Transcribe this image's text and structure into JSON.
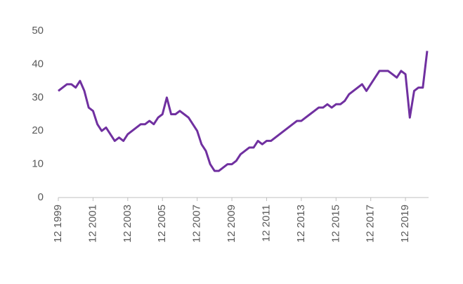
{
  "chart_data": {
    "type": "line",
    "categories": [
      "12 1999",
      null,
      null,
      null,
      null,
      null,
      null,
      null,
      "12 2001",
      null,
      null,
      null,
      null,
      null,
      null,
      null,
      "12 2003",
      null,
      null,
      null,
      null,
      null,
      null,
      null,
      "12 2005",
      null,
      null,
      null,
      null,
      null,
      null,
      null,
      "12 2007",
      null,
      null,
      null,
      null,
      null,
      null,
      null,
      "12 2009",
      null,
      null,
      null,
      null,
      null,
      null,
      null,
      "12 2011",
      null,
      null,
      null,
      null,
      null,
      null,
      null,
      "12 2013",
      null,
      null,
      null,
      null,
      null,
      null,
      null,
      "12 2015",
      null,
      null,
      null,
      null,
      null,
      null,
      null,
      "12 2017",
      null,
      null,
      null,
      null,
      null,
      null,
      null,
      "12 2019",
      null,
      null,
      null,
      null,
      null
    ],
    "series": [
      {
        "color": "#7030a0",
        "values": [
          32,
          33,
          34,
          34,
          33,
          35,
          32,
          27,
          26,
          22,
          20,
          21,
          19,
          17,
          18,
          17,
          19,
          20,
          21,
          22,
          22,
          23,
          22,
          24,
          25,
          30,
          25,
          25,
          26,
          25,
          24,
          22,
          20,
          16,
          14,
          10,
          8,
          8,
          9,
          10,
          10,
          11,
          13,
          14,
          15,
          15,
          17,
          16,
          17,
          17,
          18,
          19,
          20,
          21,
          22,
          23,
          23,
          24,
          25,
          26,
          27,
          27,
          28,
          27,
          28,
          28,
          29,
          31,
          32,
          33,
          34,
          32,
          34,
          36,
          38,
          38,
          38,
          37,
          36,
          38,
          37,
          24,
          32,
          33,
          33,
          44
        ]
      }
    ],
    "ylim": [
      0,
      50
    ],
    "yticks": [
      0,
      10,
      20,
      30,
      40,
      50
    ],
    "grid": false
  }
}
